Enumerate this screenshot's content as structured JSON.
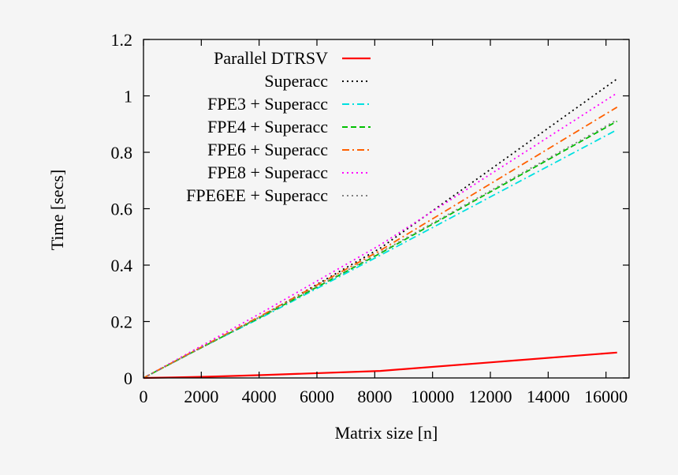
{
  "chart_data": {
    "type": "line",
    "title": "",
    "xlabel": "Matrix size [n]",
    "ylabel": "Time [secs]",
    "xlim": [
      0,
      16800
    ],
    "ylim": [
      0,
      1.2
    ],
    "xticks": [
      "0",
      "2000",
      "4000",
      "6000",
      "8000",
      "10000",
      "12000",
      "14000",
      "16000"
    ],
    "yticks": [
      "0",
      "0.2",
      "0.4",
      "0.6",
      "0.8",
      "1",
      "1.2"
    ],
    "grid": false,
    "legend_position": "top-left",
    "series": [
      {
        "name": "Parallel DTRSV",
        "color": "#ff0000",
        "dash": "solid",
        "x": [
          0,
          1024,
          2048,
          4096,
          8192,
          16384
        ],
        "y": [
          0,
          0.002,
          0.004,
          0.01,
          0.025,
          0.09
        ]
      },
      {
        "name": "Superacc",
        "color": "#000000",
        "dash": "dotted",
        "x": [
          0,
          1024,
          2048,
          4096,
          8192,
          16384
        ],
        "y": [
          0,
          0.055,
          0.11,
          0.22,
          0.46,
          1.06
        ]
      },
      {
        "name": "FPE3 + Superacc",
        "color": "#00e0e0",
        "dash": "dashdot",
        "x": [
          0,
          1024,
          2048,
          4096,
          8192,
          16384
        ],
        "y": [
          0,
          0.055,
          0.11,
          0.215,
          0.435,
          0.88
        ]
      },
      {
        "name": "FPE4 + Superacc",
        "color": "#00c000",
        "dash": "dashed",
        "x": [
          0,
          1024,
          2048,
          4096,
          8192,
          16384
        ],
        "y": [
          0,
          0.055,
          0.11,
          0.218,
          0.442,
          0.91
        ]
      },
      {
        "name": "FPE6 + Superacc",
        "color": "#ff6000",
        "dash": "dashdot",
        "x": [
          0,
          1024,
          2048,
          4096,
          8192,
          16384
        ],
        "y": [
          0,
          0.056,
          0.112,
          0.222,
          0.452,
          0.96
        ]
      },
      {
        "name": "FPE8 + Superacc",
        "color": "#ff00ff",
        "dash": "dotted",
        "x": [
          0,
          1024,
          2048,
          4096,
          8192,
          16384
        ],
        "y": [
          0,
          0.058,
          0.116,
          0.232,
          0.472,
          1.01
        ]
      },
      {
        "name": "FPE6EE + Superacc",
        "color": "#808080",
        "dash": "dotted",
        "x": [
          0,
          1024,
          2048,
          4096,
          8192,
          16384
        ],
        "y": [
          0,
          0.055,
          0.11,
          0.22,
          0.445,
          0.915
        ]
      }
    ]
  }
}
